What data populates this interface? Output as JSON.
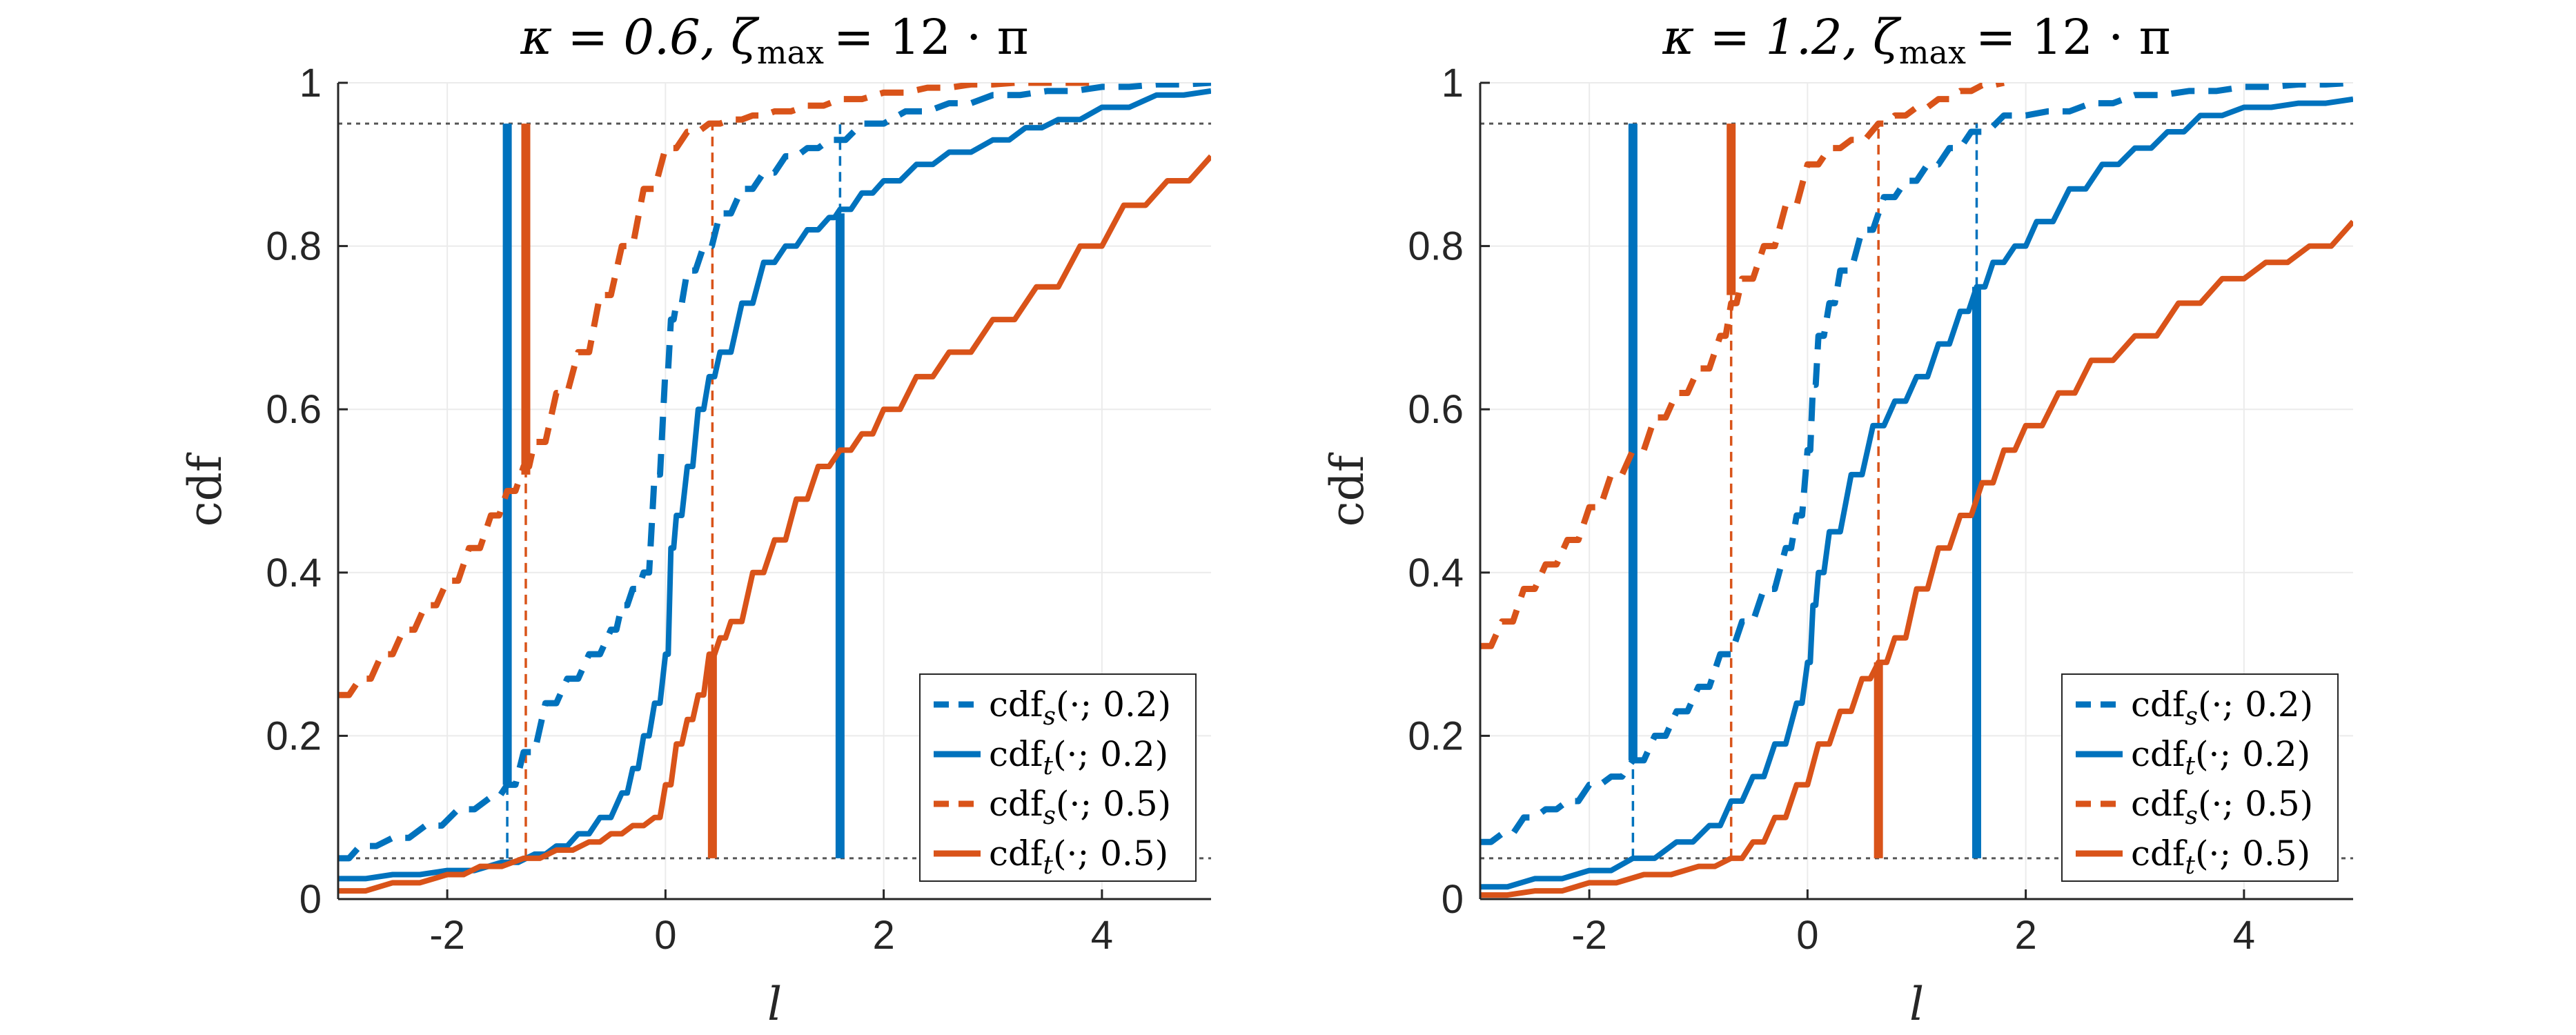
{
  "colors": {
    "blue": "#0072BD",
    "orange": "#D95319",
    "axis": "#262626",
    "grid": "#ebebeb",
    "ref": "#555555"
  },
  "chart_data": [
    {
      "type": "line",
      "title": "κ = 0.6, ζ_max = 12 · π",
      "title_kappa": "κ = 0.6,",
      "title_zeta": "ζ",
      "title_zeta_sub": "max",
      "title_rest": "= 12 · π",
      "xlabel": "l",
      "ylabel": "cdf",
      "xlim": [
        -3,
        5
      ],
      "ylim": [
        0,
        1
      ],
      "xticks": [
        -2,
        0,
        2,
        4
      ],
      "xtick_labels": [
        "-2",
        "0",
        "2",
        "4"
      ],
      "yticks": [
        0,
        0.2,
        0.4,
        0.6,
        0.8,
        1
      ],
      "ytick_labels": [
        "0",
        "0.2",
        "0.4",
        "0.6",
        "0.8",
        "1"
      ],
      "grid": true,
      "legend_position": "bottom-right",
      "reference_lines": [
        0.05,
        0.95
      ],
      "series": [
        {
          "name": "cdf_s(·; 0.2)",
          "label_main": "cdf",
          "label_sub": "s",
          "label_arg": "(·; 0.2)",
          "color": "blue",
          "style": "dashed",
          "x": [
            -3,
            -2.8,
            -2.5,
            -2.2,
            -1.9,
            -1.6,
            -1.45,
            -1.3,
            -1.1,
            -0.9,
            -0.7,
            -0.5,
            -0.4,
            -0.3,
            -0.2,
            -0.1,
            0.0,
            0.05,
            0.1,
            0.2,
            0.35,
            0.5,
            0.7,
            0.9,
            1.1,
            1.3,
            1.5,
            1.8,
            2.2,
            2.6,
            3.0,
            3.5,
            4.0,
            4.5,
            5.0
          ],
          "y": [
            0.05,
            0.065,
            0.075,
            0.09,
            0.11,
            0.125,
            0.14,
            0.18,
            0.24,
            0.27,
            0.3,
            0.33,
            0.36,
            0.38,
            0.4,
            0.52,
            0.65,
            0.71,
            0.73,
            0.77,
            0.8,
            0.84,
            0.87,
            0.89,
            0.91,
            0.92,
            0.93,
            0.95,
            0.965,
            0.975,
            0.985,
            0.99,
            0.995,
            0.998,
            1.0
          ]
        },
        {
          "name": "cdf_t(·; 0.2)",
          "label_main": "cdf",
          "label_sub": "t",
          "label_arg": "(·; 0.2)",
          "color": "blue",
          "style": "solid",
          "x": [
            -3,
            -2.5,
            -2.0,
            -1.5,
            -1.2,
            -1.0,
            -0.8,
            -0.6,
            -0.4,
            -0.3,
            -0.2,
            -0.1,
            0.0,
            0.05,
            0.1,
            0.2,
            0.3,
            0.4,
            0.5,
            0.7,
            0.9,
            1.1,
            1.3,
            1.5,
            1.6,
            1.8,
            2.0,
            2.3,
            2.6,
            3.0,
            3.3,
            3.6,
            4.0,
            4.5,
            5.0
          ],
          "y": [
            0.025,
            0.03,
            0.035,
            0.045,
            0.055,
            0.065,
            0.08,
            0.1,
            0.13,
            0.16,
            0.2,
            0.24,
            0.3,
            0.43,
            0.47,
            0.53,
            0.6,
            0.64,
            0.67,
            0.73,
            0.78,
            0.8,
            0.82,
            0.835,
            0.845,
            0.865,
            0.88,
            0.9,
            0.915,
            0.93,
            0.945,
            0.955,
            0.97,
            0.985,
            0.99
          ]
        },
        {
          "name": "cdf_s(·; 0.5)",
          "label_main": "cdf",
          "label_sub": "s",
          "label_arg": "(·; 0.5)",
          "color": "orange",
          "style": "dashed",
          "x": [
            -3,
            -2.8,
            -2.6,
            -2.4,
            -2.2,
            -2.0,
            -1.8,
            -1.6,
            -1.45,
            -1.3,
            -1.2,
            -1.0,
            -0.8,
            -0.6,
            -0.4,
            -0.2,
            0.0,
            0.2,
            0.4,
            0.6,
            0.8,
            1.0,
            1.3,
            1.6,
            2.0,
            2.4,
            2.8,
            3.2,
            3.6,
            4.0
          ],
          "y": [
            0.25,
            0.27,
            0.3,
            0.33,
            0.36,
            0.39,
            0.43,
            0.47,
            0.5,
            0.53,
            0.56,
            0.62,
            0.67,
            0.74,
            0.8,
            0.87,
            0.92,
            0.94,
            0.95,
            0.955,
            0.96,
            0.965,
            0.972,
            0.98,
            0.988,
            0.994,
            0.998,
            1.0,
            1.0,
            1.0
          ]
        },
        {
          "name": "cdf_t(·; 0.5)",
          "label_main": "cdf",
          "label_sub": "t",
          "label_arg": "(·; 0.5)",
          "color": "orange",
          "style": "solid",
          "x": [
            -3,
            -2.5,
            -2.0,
            -1.7,
            -1.3,
            -1.0,
            -0.7,
            -0.5,
            -0.3,
            -0.1,
            0.0,
            0.1,
            0.2,
            0.3,
            0.4,
            0.5,
            0.6,
            0.8,
            1.0,
            1.2,
            1.4,
            1.6,
            1.8,
            2.0,
            2.3,
            2.6,
            3.0,
            3.4,
            3.8,
            4.2,
            4.6,
            5.0
          ],
          "y": [
            0.01,
            0.02,
            0.03,
            0.04,
            0.05,
            0.06,
            0.07,
            0.08,
            0.09,
            0.1,
            0.14,
            0.19,
            0.22,
            0.25,
            0.3,
            0.32,
            0.34,
            0.4,
            0.44,
            0.49,
            0.53,
            0.55,
            0.57,
            0.6,
            0.64,
            0.67,
            0.71,
            0.75,
            0.8,
            0.85,
            0.88,
            0.91
          ]
        }
      ],
      "quantile_markers": [
        {
          "color": "blue",
          "style": "solid",
          "x": -1.45,
          "y1": 0.14,
          "y2": 0.95
        },
        {
          "color": "blue",
          "style": "dashed",
          "x": -1.45,
          "y1": 0.05,
          "y2": 0.14
        },
        {
          "color": "orange",
          "style": "solid",
          "x": -1.28,
          "y1": 0.52,
          "y2": 0.95
        },
        {
          "color": "orange",
          "style": "dashed",
          "x": -1.28,
          "y1": 0.05,
          "y2": 0.52
        },
        {
          "color": "orange",
          "style": "dashed",
          "x": 0.43,
          "y1": 0.3,
          "y2": 0.95
        },
        {
          "color": "orange",
          "style": "solid",
          "x": 0.43,
          "y1": 0.05,
          "y2": 0.3
        },
        {
          "color": "blue",
          "style": "dashed",
          "x": 1.6,
          "y1": 0.84,
          "y2": 0.95
        },
        {
          "color": "blue",
          "style": "solid",
          "x": 1.6,
          "y1": 0.05,
          "y2": 0.84
        }
      ]
    },
    {
      "type": "line",
      "title": "κ = 1.2, ζ_max = 12 · π",
      "title_kappa": "κ = 1.2,",
      "title_zeta": "ζ",
      "title_zeta_sub": "max",
      "title_rest": "= 12 · π",
      "xlabel": "l",
      "ylabel": "cdf",
      "xlim": [
        -3,
        5
      ],
      "ylim": [
        0,
        1
      ],
      "xticks": [
        -2,
        0,
        2,
        4
      ],
      "xtick_labels": [
        "-2",
        "0",
        "2",
        "4"
      ],
      "yticks": [
        0,
        0.2,
        0.4,
        0.6,
        0.8,
        1
      ],
      "ytick_labels": [
        "0",
        "0.2",
        "0.4",
        "0.6",
        "0.8",
        "1"
      ],
      "grid": true,
      "legend_position": "bottom-right",
      "reference_lines": [
        0.05,
        0.95
      ],
      "series": [
        {
          "name": "cdf_s(·; 0.2)",
          "label_main": "cdf",
          "label_sub": "s",
          "label_arg": "(·; 0.2)",
          "color": "blue",
          "style": "dashed",
          "x": [
            -3,
            -2.8,
            -2.6,
            -2.4,
            -2.2,
            -2.0,
            -1.8,
            -1.6,
            -1.4,
            -1.2,
            -1.0,
            -0.8,
            -0.6,
            -0.4,
            -0.2,
            -0.1,
            0.0,
            0.05,
            0.1,
            0.2,
            0.3,
            0.5,
            0.7,
            0.9,
            1.1,
            1.3,
            1.5,
            1.8,
            2.2,
            2.6,
            3.0,
            3.5,
            4.0,
            4.5,
            5.0
          ],
          "y": [
            0.07,
            0.08,
            0.1,
            0.11,
            0.12,
            0.14,
            0.15,
            0.17,
            0.2,
            0.23,
            0.26,
            0.3,
            0.34,
            0.38,
            0.43,
            0.47,
            0.55,
            0.63,
            0.69,
            0.73,
            0.77,
            0.82,
            0.86,
            0.88,
            0.9,
            0.92,
            0.94,
            0.96,
            0.965,
            0.975,
            0.985,
            0.99,
            0.995,
            0.998,
            1.0
          ]
        },
        {
          "name": "cdf_t(·; 0.2)",
          "label_main": "cdf",
          "label_sub": "t",
          "label_arg": "(·; 0.2)",
          "color": "blue",
          "style": "solid",
          "x": [
            -3,
            -2.5,
            -2.0,
            -1.6,
            -1.2,
            -0.9,
            -0.7,
            -0.5,
            -0.3,
            -0.1,
            0.0,
            0.05,
            0.1,
            0.2,
            0.4,
            0.6,
            0.8,
            1.0,
            1.2,
            1.4,
            1.55,
            1.7,
            1.9,
            2.1,
            2.4,
            2.7,
            3.0,
            3.3,
            3.6,
            4.0,
            4.5,
            5.0
          ],
          "y": [
            0.015,
            0.025,
            0.035,
            0.05,
            0.07,
            0.09,
            0.12,
            0.15,
            0.19,
            0.24,
            0.29,
            0.36,
            0.4,
            0.45,
            0.52,
            0.58,
            0.61,
            0.64,
            0.68,
            0.72,
            0.75,
            0.78,
            0.8,
            0.83,
            0.87,
            0.9,
            0.92,
            0.94,
            0.96,
            0.97,
            0.975,
            0.98
          ]
        },
        {
          "name": "cdf_s(·; 0.5)",
          "label_main": "cdf",
          "label_sub": "s",
          "label_arg": "(·; 0.5)",
          "color": "orange",
          "style": "dashed",
          "x": [
            -3,
            -2.8,
            -2.6,
            -2.4,
            -2.2,
            -2.0,
            -1.8,
            -1.6,
            -1.4,
            -1.2,
            -1.0,
            -0.8,
            -0.7,
            -0.6,
            -0.4,
            -0.2,
            0.0,
            0.2,
            0.4,
            0.65,
            0.8,
            1.0,
            1.2,
            1.4,
            1.6,
            1.8
          ],
          "y": [
            0.31,
            0.34,
            0.38,
            0.41,
            0.44,
            0.48,
            0.52,
            0.55,
            0.59,
            0.62,
            0.65,
            0.69,
            0.73,
            0.76,
            0.8,
            0.85,
            0.9,
            0.92,
            0.93,
            0.95,
            0.96,
            0.97,
            0.98,
            0.99,
            0.997,
            1.0
          ]
        },
        {
          "name": "cdf_t(·; 0.5)",
          "label_main": "cdf",
          "label_sub": "t",
          "label_arg": "(·; 0.5)",
          "color": "orange",
          "style": "solid",
          "x": [
            -3,
            -2.5,
            -2.0,
            -1.5,
            -1.0,
            -0.7,
            -0.5,
            -0.3,
            -0.1,
            0.1,
            0.3,
            0.5,
            0.65,
            0.8,
            1.0,
            1.2,
            1.4,
            1.6,
            1.8,
            2.0,
            2.3,
            2.6,
            3.0,
            3.4,
            3.8,
            4.2,
            4.6,
            5.0
          ],
          "y": [
            0.005,
            0.01,
            0.02,
            0.03,
            0.04,
            0.05,
            0.07,
            0.1,
            0.14,
            0.19,
            0.23,
            0.27,
            0.29,
            0.32,
            0.38,
            0.43,
            0.47,
            0.51,
            0.55,
            0.58,
            0.62,
            0.66,
            0.69,
            0.73,
            0.76,
            0.78,
            0.8,
            0.83
          ]
        }
      ],
      "quantile_markers": [
        {
          "color": "blue",
          "style": "solid",
          "x": -1.6,
          "y1": 0.17,
          "y2": 0.95
        },
        {
          "color": "blue",
          "style": "dashed",
          "x": -1.6,
          "y1": 0.05,
          "y2": 0.17
        },
        {
          "color": "orange",
          "style": "solid",
          "x": -0.7,
          "y1": 0.74,
          "y2": 0.95
        },
        {
          "color": "orange",
          "style": "dashed",
          "x": -0.7,
          "y1": 0.05,
          "y2": 0.74
        },
        {
          "color": "orange",
          "style": "dashed",
          "x": 0.65,
          "y1": 0.29,
          "y2": 0.95
        },
        {
          "color": "orange",
          "style": "solid",
          "x": 0.65,
          "y1": 0.05,
          "y2": 0.29
        },
        {
          "color": "blue",
          "style": "dashed",
          "x": 1.55,
          "y1": 0.75,
          "y2": 0.95
        },
        {
          "color": "blue",
          "style": "solid",
          "x": 1.55,
          "y1": 0.05,
          "y2": 0.75
        }
      ]
    }
  ]
}
